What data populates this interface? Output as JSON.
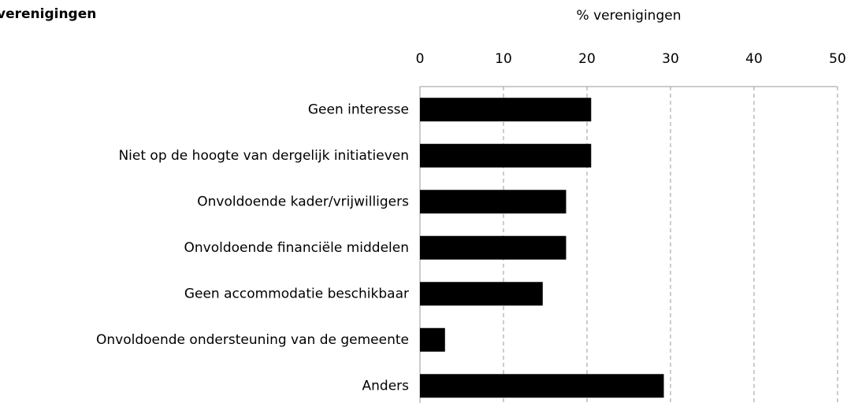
{
  "chart_data": {
    "type": "bar",
    "orientation": "horizontal",
    "title": "verenigingen",
    "xlabel": "% verenigingen",
    "categories": [
      "Geen interesse",
      "Niet op de hoogte van dergelijk initiatieven",
      "Onvoldoende kader/vrijwilligers",
      "Onvoldoende financiële middelen",
      "Geen accommodatie beschikbaar",
      "Onvoldoende ondersteuning van de gemeente",
      "Anders"
    ],
    "values": [
      20.5,
      20.5,
      17.5,
      17.5,
      14.7,
      3.0,
      29.2
    ],
    "color": "#000000",
    "xlim": [
      0,
      50
    ],
    "xticks": [
      0,
      10,
      20,
      30,
      40,
      50
    ],
    "grid": true
  }
}
